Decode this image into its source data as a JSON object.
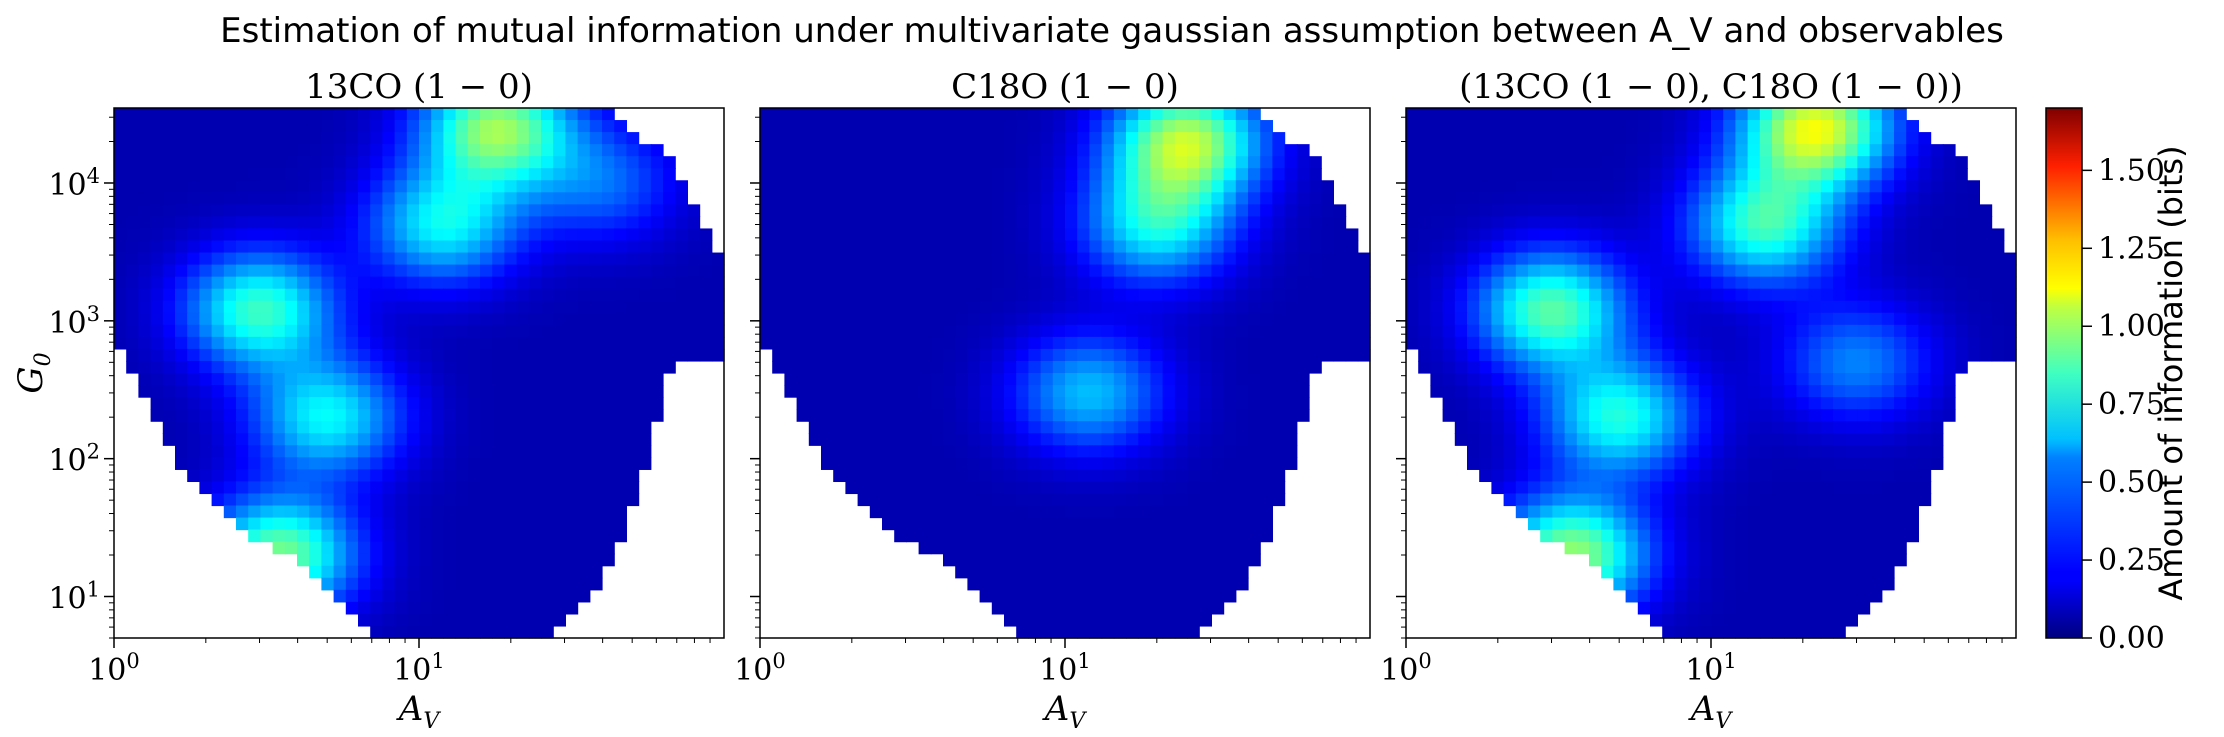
{
  "figure": {
    "title": "Estimation of mutual information under multivariate gaussian assumption between A_V and observables"
  },
  "chart_data": [
    {
      "type": "heatmap",
      "title": "13CO (1 − 0)",
      "xlabel": "A_V",
      "ylabel": "G_0",
      "xscale": "log",
      "yscale": "log",
      "xlim": [
        1,
        100
      ],
      "ylim": [
        5,
        35000
      ],
      "xticks": [
        "10^0",
        "10^1"
      ],
      "yticks": [
        "10^1",
        "10^2",
        "10^3",
        "10^4"
      ],
      "colormap": "jet",
      "clim": [
        0,
        1.7
      ],
      "hotspots": [
        {
          "av": 3.5,
          "g0": 20,
          "value": 0.75
        },
        {
          "av": 3.0,
          "g0": 1200,
          "value": 0.65
        },
        {
          "av": 5.0,
          "g0": 200,
          "value": 0.55
        },
        {
          "av": 18,
          "g0": 25000,
          "value": 0.8
        },
        {
          "av": 12,
          "g0": 5000,
          "value": 0.55
        },
        {
          "av": 40,
          "g0": 10000,
          "value": 0.3
        }
      ]
    },
    {
      "type": "heatmap",
      "title": "C18O (1 − 0)",
      "xlabel": "A_V",
      "ylabel": "",
      "xscale": "log",
      "yscale": "log",
      "xlim": [
        1,
        100
      ],
      "ylim": [
        5,
        35000
      ],
      "xticks": [
        "10^0",
        "10^1"
      ],
      "colormap": "jet",
      "clim": [
        0,
        1.7
      ],
      "hotspots": [
        {
          "av": 12,
          "g0": 300,
          "value": 0.45
        },
        {
          "av": 25,
          "g0": 20000,
          "value": 0.85
        },
        {
          "av": 20,
          "g0": 5000,
          "value": 0.55
        }
      ]
    },
    {
      "type": "heatmap",
      "title": "(13CO (1 − 0), C18O (1 − 0))",
      "xlabel": "A_V",
      "ylabel": "",
      "xscale": "log",
      "yscale": "log",
      "xlim": [
        1,
        100
      ],
      "ylim": [
        5,
        35000
      ],
      "xticks": [
        "10^0",
        "10^1"
      ],
      "colormap": "jet",
      "clim": [
        0,
        1.7
      ],
      "hotspots": [
        {
          "av": 3.5,
          "g0": 20,
          "value": 0.8
        },
        {
          "av": 3.0,
          "g0": 1200,
          "value": 0.7
        },
        {
          "av": 5.0,
          "g0": 200,
          "value": 0.6
        },
        {
          "av": 22,
          "g0": 25000,
          "value": 0.95
        },
        {
          "av": 15,
          "g0": 5000,
          "value": 0.65
        },
        {
          "av": 30,
          "g0": 500,
          "value": 0.35
        }
      ]
    }
  ],
  "colorbar": {
    "label": "Amount of information (bits)",
    "ticks": [
      "0.00",
      "0.25",
      "0.50",
      "0.75",
      "1.00",
      "1.25",
      "1.50"
    ],
    "tick_values": [
      0,
      0.25,
      0.5,
      0.75,
      1.0,
      1.25,
      1.5
    ],
    "range": [
      0,
      1.7
    ]
  }
}
